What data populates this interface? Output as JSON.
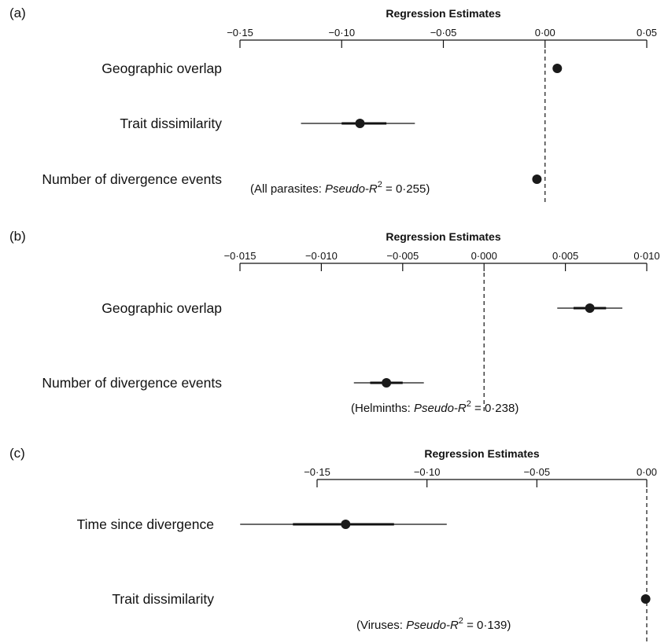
{
  "chart_data": [
    {
      "type": "forest",
      "panel_label": "(a)",
      "axis_title": "Regression Estimates",
      "xlim": [
        -0.15,
        0.05
      ],
      "ticks": [
        -0.15,
        -0.1,
        -0.05,
        0.0,
        0.05
      ],
      "tick_labels": [
        "−0·15",
        "−0·10",
        "−0·05",
        "0·00",
        "0·05"
      ],
      "reference_line": 0,
      "rows": [
        {
          "label": "Geographic overlap",
          "estimate": 0.006,
          "ci_inner": [
            0.006,
            0.006
          ],
          "ci_outer": [
            0.006,
            0.006
          ]
        },
        {
          "label": "Trait dissimilarity",
          "estimate": -0.091,
          "ci_inner": [
            -0.1,
            -0.078
          ],
          "ci_outer": [
            -0.12,
            -0.064
          ]
        },
        {
          "label": "Number of divergence events",
          "estimate": -0.004,
          "ci_inner": [
            -0.004,
            -0.004
          ],
          "ci_outer": [
            -0.004,
            -0.004
          ]
        }
      ],
      "fit_note": {
        "prefix": "(All parasites: ",
        "italic": "Pseudo-R",
        "sup": "2",
        "suffix": " = 0·255)"
      }
    },
    {
      "type": "forest",
      "panel_label": "(b)",
      "axis_title": "Regression Estimates",
      "xlim": [
        -0.015,
        0.01
      ],
      "ticks": [
        -0.015,
        -0.01,
        -0.005,
        0.0,
        0.005,
        0.01
      ],
      "tick_labels": [
        "−0·015",
        "−0·010",
        "−0·005",
        "0·000",
        "0·005",
        "0·010"
      ],
      "reference_line": 0,
      "rows": [
        {
          "label": "Geographic overlap",
          "estimate": 0.0065,
          "ci_inner": [
            0.0055,
            0.0075
          ],
          "ci_outer": [
            0.0045,
            0.0085
          ]
        },
        {
          "label": "Number of divergence events",
          "estimate": -0.006,
          "ci_inner": [
            -0.007,
            -0.005
          ],
          "ci_outer": [
            -0.008,
            -0.0037
          ]
        }
      ],
      "fit_note": {
        "prefix": "(Helminths: ",
        "italic": "Pseudo-R",
        "sup": "2",
        "suffix": " = 0·238)"
      }
    },
    {
      "type": "forest",
      "panel_label": "(c)",
      "axis_title": "Regression Estimates",
      "xlim": [
        -0.15,
        0.0
      ],
      "ticks": [
        -0.15,
        -0.1,
        -0.05,
        0.0
      ],
      "tick_labels": [
        "−0·15",
        "−0·10",
        "−0·05",
        "0·00"
      ],
      "reference_line": 0,
      "rows": [
        {
          "label": "Time since divergence",
          "estimate": -0.137,
          "ci_inner": [
            -0.161,
            -0.115
          ],
          "ci_outer": [
            -0.185,
            -0.091
          ]
        },
        {
          "label": "Trait dissimilarity",
          "estimate": -0.0005,
          "ci_inner": [
            -0.0005,
            -0.0005
          ],
          "ci_outer": [
            -0.0005,
            -0.0005
          ]
        }
      ],
      "fit_note": {
        "prefix": "(Viruses: ",
        "italic": "Pseudo-R",
        "sup": "2",
        "suffix": " = 0·139)"
      }
    }
  ]
}
